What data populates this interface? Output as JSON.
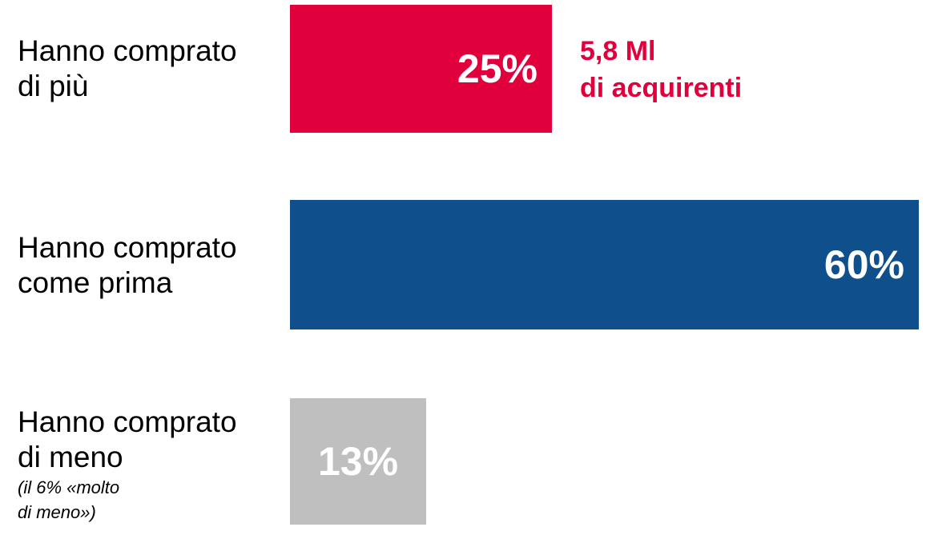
{
  "chart_data": {
    "type": "bar",
    "orientation": "horizontal",
    "categories": [
      {
        "lines": [
          "Hanno comprato",
          "di più"
        ],
        "note": []
      },
      {
        "lines": [
          "Hanno comprato",
          "come prima"
        ],
        "note": []
      },
      {
        "lines": [
          "Hanno comprato",
          "di meno"
        ],
        "note": [
          "(il 6% «molto",
          "di meno»)"
        ]
      }
    ],
    "values": [
      25,
      60,
      13
    ],
    "value_labels": [
      "25%",
      "60%",
      "13%"
    ],
    "colors": [
      "#e2003c",
      "#0f4f8c",
      "#bfbfbf"
    ],
    "annotation": {
      "lines": [
        "5,8 Ml",
        "di acquirenti"
      ],
      "color": "#e2003c"
    },
    "title": "",
    "xlabel": "",
    "ylabel": ""
  }
}
